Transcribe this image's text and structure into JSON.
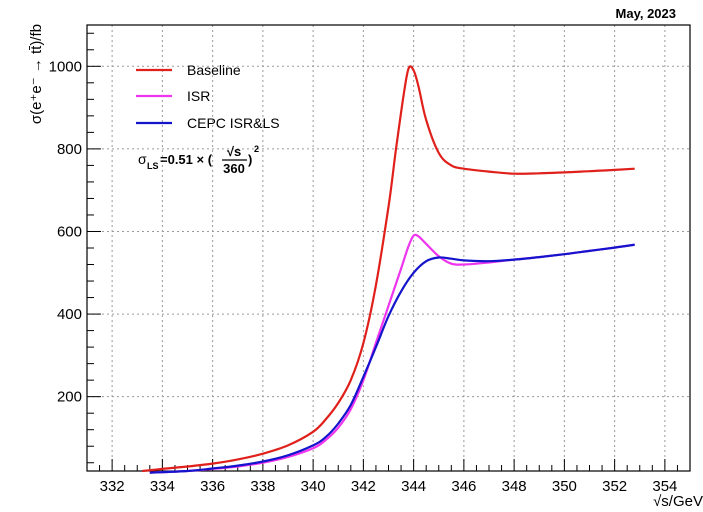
{
  "date_label": "May, 2023",
  "formula": {
    "sigma_symbol": "σ",
    "subscript": "LS",
    "value_text": "=0.51 × (",
    "numerator": "√s",
    "denominator": "360",
    "closing": ")",
    "exponent": "2"
  },
  "colors": {
    "baseline": "#e0201b",
    "isr": "#ef34ef",
    "cepc": "#1414cc"
  },
  "chart_data": {
    "type": "line",
    "xlabel": "√s/GeV",
    "ylabel": "σ(e⁺e⁻ → tt̄)/fb",
    "xlim": [
      331,
      355
    ],
    "ylim": [
      20,
      1100
    ],
    "x_ticks": [
      332,
      334,
      336,
      338,
      340,
      342,
      344,
      346,
      348,
      350,
      352,
      354
    ],
    "y_ticks": [
      200,
      400,
      600,
      800,
      1000
    ],
    "grid": true,
    "legend_position": "top-left",
    "series": [
      {
        "name": "Baseline",
        "color": "#e0201b",
        "points": [
          [
            333.2,
            20
          ],
          [
            334,
            25
          ],
          [
            335,
            31
          ],
          [
            336,
            38
          ],
          [
            337,
            48
          ],
          [
            338,
            62
          ],
          [
            339,
            82
          ],
          [
            340,
            115
          ],
          [
            340.5,
            145
          ],
          [
            341,
            185
          ],
          [
            341.5,
            240
          ],
          [
            342,
            330
          ],
          [
            342.5,
            470
          ],
          [
            343,
            660
          ],
          [
            343.3,
            800
          ],
          [
            343.6,
            930
          ],
          [
            343.8,
            995
          ],
          [
            344,
            990
          ],
          [
            344.2,
            950
          ],
          [
            344.5,
            870
          ],
          [
            345,
            790
          ],
          [
            345.5,
            760
          ],
          [
            346,
            752
          ],
          [
            347,
            745
          ],
          [
            348,
            740
          ],
          [
            349,
            741
          ],
          [
            350,
            743
          ],
          [
            351,
            746
          ],
          [
            352,
            749
          ],
          [
            352.8,
            752
          ]
        ]
      },
      {
        "name": "ISR",
        "color": "#ef34ef",
        "points": [
          [
            333.5,
            16
          ],
          [
            335,
            20
          ],
          [
            336,
            25
          ],
          [
            337,
            31
          ],
          [
            338,
            40
          ],
          [
            339,
            54
          ],
          [
            340,
            75
          ],
          [
            340.5,
            95
          ],
          [
            341,
            125
          ],
          [
            341.5,
            170
          ],
          [
            342,
            240
          ],
          [
            342.5,
            330
          ],
          [
            343,
            420
          ],
          [
            343.5,
            510
          ],
          [
            343.8,
            565
          ],
          [
            344,
            590
          ],
          [
            344.2,
            588
          ],
          [
            344.5,
            570
          ],
          [
            345,
            540
          ],
          [
            345.5,
            522
          ],
          [
            346,
            520
          ],
          [
            347,
            525
          ],
          [
            348,
            532
          ],
          [
            349,
            538
          ],
          [
            350,
            545
          ],
          [
            351,
            553
          ],
          [
            352,
            561
          ],
          [
            352.8,
            568
          ]
        ]
      },
      {
        "name": "CEPC ISR&LS",
        "color": "#1414cc",
        "points": [
          [
            333.5,
            16
          ],
          [
            335,
            20
          ],
          [
            336,
            26
          ],
          [
            337,
            33
          ],
          [
            338,
            43
          ],
          [
            339,
            58
          ],
          [
            340,
            82
          ],
          [
            340.5,
            102
          ],
          [
            341,
            135
          ],
          [
            341.5,
            180
          ],
          [
            342,
            248
          ],
          [
            342.5,
            320
          ],
          [
            343,
            395
          ],
          [
            343.5,
            455
          ],
          [
            344,
            500
          ],
          [
            344.5,
            528
          ],
          [
            345,
            537
          ],
          [
            345.5,
            534
          ],
          [
            346,
            530
          ],
          [
            347,
            528
          ],
          [
            348,
            532
          ],
          [
            349,
            538
          ],
          [
            350,
            545
          ],
          [
            351,
            553
          ],
          [
            352,
            561
          ],
          [
            352.8,
            568
          ]
        ]
      }
    ]
  }
}
